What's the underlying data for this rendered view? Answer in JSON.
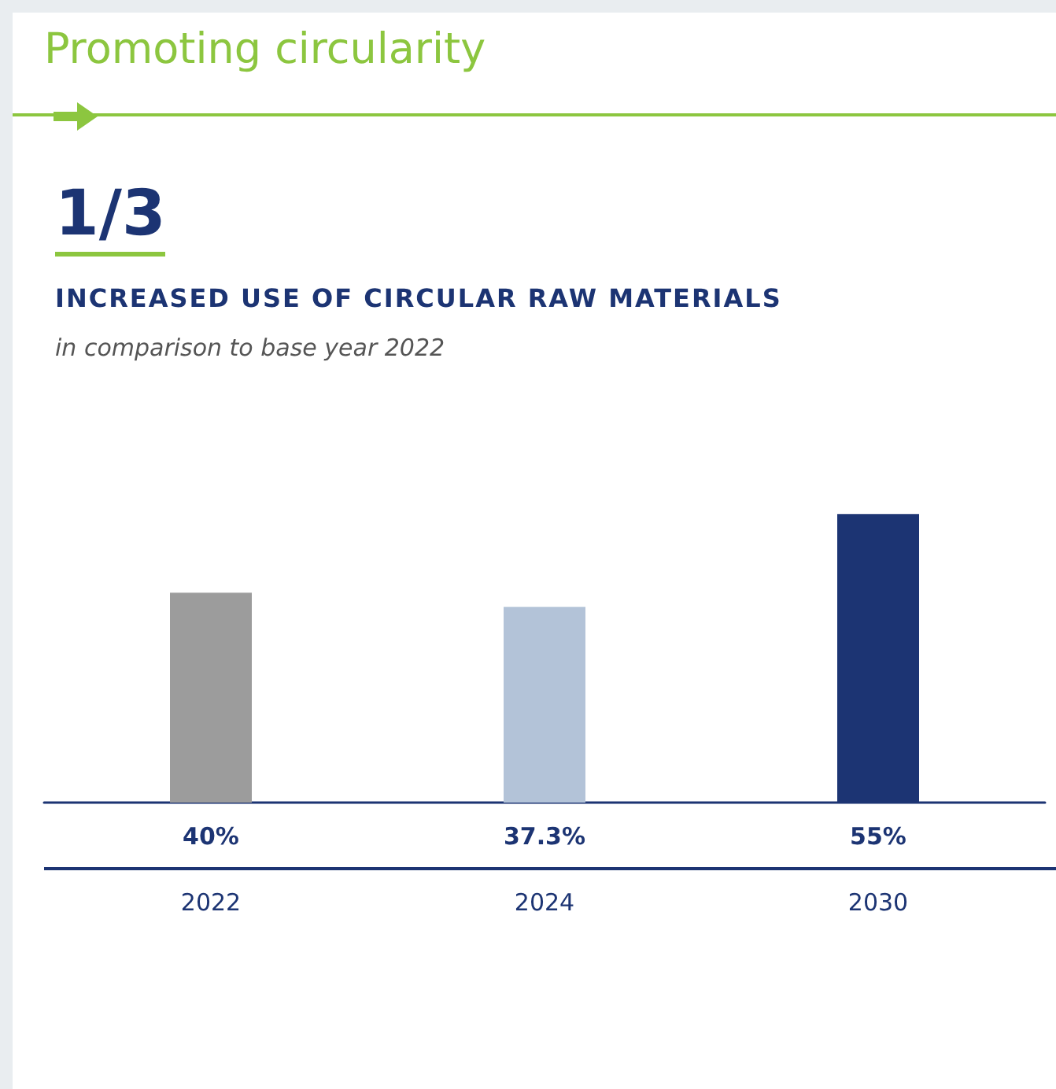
{
  "chart_data": {
    "type": "bar",
    "title": "Promoting circularity",
    "subtitle": "INCREASED USE OF CIRCULAR RAW MATERIALS",
    "annotations": [
      "1/3",
      "in comparison to base year 2022"
    ],
    "categories": [
      "2022",
      "2024",
      "2030"
    ],
    "values": [
      40,
      37.3,
      55
    ],
    "colors": [
      "#9c9c9c",
      "#b3c3d8",
      "#1c3473"
    ],
    "value_labels": [
      "40%",
      "37.3%",
      "55%"
    ],
    "tick_labels": "x"
  }
}
